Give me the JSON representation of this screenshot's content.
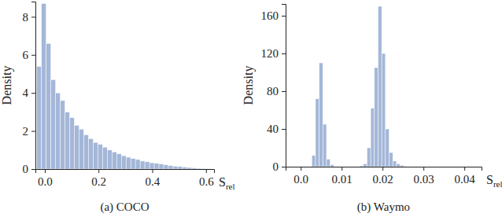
{
  "chart_data": [
    {
      "type": "histogram",
      "title": "(a) COCO",
      "y_label": "Density",
      "x_label": "Srel",
      "color": "#a4b7d8",
      "bins": [
        -0.03,
        -0.0125,
        0.005,
        0.0225,
        0.04,
        0.0575,
        0.075,
        0.0925,
        0.11,
        0.1275,
        0.145,
        0.1625,
        0.18,
        0.1975,
        0.215,
        0.2325,
        0.25,
        0.2675,
        0.285,
        0.3025,
        0.32,
        0.3375,
        0.355,
        0.3725,
        0.39,
        0.4075,
        0.425,
        0.4425,
        0.46,
        0.4775,
        0.495,
        0.5125,
        0.53,
        0.5475,
        0.565,
        0.5825,
        0.6,
        0.6175
      ],
      "counts": [
        5.4,
        8.7,
        6.6,
        4.7,
        4.0,
        3.6,
        3.0,
        2.7,
        2.3,
        2.1,
        1.8,
        1.6,
        1.4,
        1.3,
        1.15,
        1.0,
        0.9,
        0.8,
        0.7,
        0.62,
        0.55,
        0.5,
        0.42,
        0.38,
        0.33,
        0.3,
        0.27,
        0.22,
        0.18,
        0.15,
        0.13,
        0.1,
        0.08,
        0.06,
        0.04,
        0.03,
        0.02
      ],
      "xlim": [
        -0.035,
        0.63
      ],
      "ylim": [
        0,
        8.8
      ],
      "xticks": [
        {
          "value": 0,
          "label": "0.0"
        },
        0.2,
        0.4,
        0.6
      ],
      "yticks": [
        0,
        2,
        4,
        6,
        8
      ]
    },
    {
      "type": "histogram",
      "title": "(b) Waymo",
      "y_label": "Density",
      "x_label": "Srel",
      "color": "#a4b7d8",
      "bins": [
        0.0027,
        0.0036,
        0.0045,
        0.0054,
        0.0063,
        0.0072,
        0.0081,
        0.009,
        0.0099,
        0.0108,
        0.0117,
        0.0126,
        0.0135,
        0.0144,
        0.0153,
        0.0162,
        0.0171,
        0.018,
        0.0189,
        0.0198,
        0.0207,
        0.0216,
        0.0225,
        0.0234,
        0.0243,
        0.0252,
        0.0261
      ],
      "counts": [
        12,
        72,
        110,
        45,
        8,
        2,
        0,
        0,
        0,
        0,
        0,
        0,
        0,
        1,
        3,
        20,
        62,
        105,
        170,
        120,
        40,
        15,
        6,
        3,
        1.5,
        0.5
      ],
      "xlim": [
        -0.0037,
        0.0442
      ],
      "ylim": [
        0,
        172.5
      ],
      "xticks": [
        {
          "value": 0,
          "label": "0.0"
        },
        0.01,
        0.02,
        0.03,
        0.04
      ],
      "yticks": [
        0,
        40,
        80,
        120,
        160
      ]
    }
  ]
}
